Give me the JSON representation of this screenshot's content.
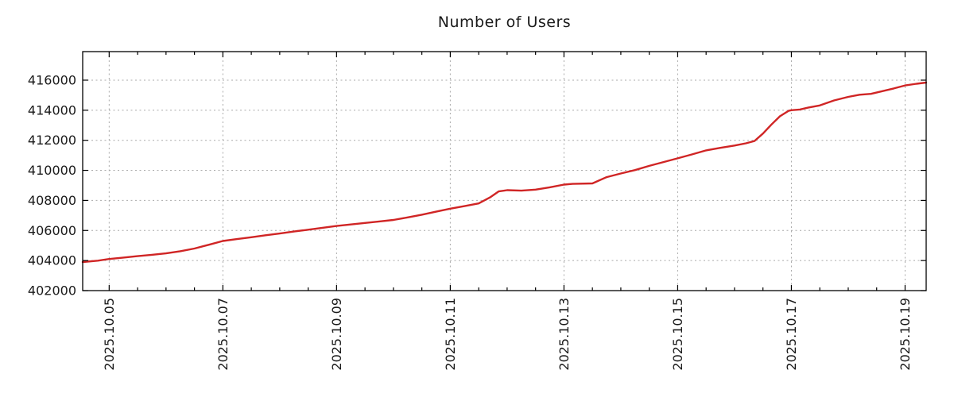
{
  "chart_data": {
    "type": "line",
    "title": "Number of Users",
    "background": "#ffffff",
    "grid": true,
    "legend": false,
    "colors": {
      "line": "#d02525",
      "grid": "#aaaaaa",
      "axis": "#000000",
      "text": "#1a1a1a"
    },
    "x_axis": {
      "note": "t = days since 2025.10.05 00:00",
      "range": [
        -0.466,
        14.371
      ],
      "minor_tick_step": 0.5,
      "major_ticks": [
        {
          "t": 0,
          "label": "2025.10.05"
        },
        {
          "t": 2,
          "label": "2025.10.07"
        },
        {
          "t": 4,
          "label": "2025.10.09"
        },
        {
          "t": 6,
          "label": "2025.10.11"
        },
        {
          "t": 8,
          "label": "2025.10.13"
        },
        {
          "t": 10,
          "label": "2025.10.15"
        },
        {
          "t": 12,
          "label": "2025.10.17"
        },
        {
          "t": 14,
          "label": "2025.10.19"
        }
      ]
    },
    "y_axis": {
      "range": [
        402000,
        417900
      ],
      "ticks": [
        {
          "value": 402000,
          "label": "402000"
        },
        {
          "value": 404000,
          "label": "404000"
        },
        {
          "value": 406000,
          "label": "406000"
        },
        {
          "value": 408000,
          "label": "408000"
        },
        {
          "value": 410000,
          "label": "410000"
        },
        {
          "value": 412000,
          "label": "412000"
        },
        {
          "value": 414000,
          "label": "414000"
        },
        {
          "value": 416000,
          "label": "416000"
        }
      ]
    },
    "series": [
      {
        "name": "users",
        "color": "#d02525",
        "points": [
          [
            -0.466,
            403900
          ],
          [
            -0.2,
            403990
          ],
          [
            0,
            404100
          ],
          [
            0.25,
            404200
          ],
          [
            0.5,
            404290
          ],
          [
            0.75,
            404380
          ],
          [
            1,
            404480
          ],
          [
            1.25,
            404620
          ],
          [
            1.5,
            404800
          ],
          [
            1.75,
            405050
          ],
          [
            2,
            405300
          ],
          [
            2.25,
            405430
          ],
          [
            2.5,
            405550
          ],
          [
            2.75,
            405680
          ],
          [
            3,
            405800
          ],
          [
            3.25,
            405930
          ],
          [
            3.5,
            406050
          ],
          [
            3.75,
            406180
          ],
          [
            4,
            406300
          ],
          [
            4.25,
            406400
          ],
          [
            4.5,
            406500
          ],
          [
            4.75,
            406600
          ],
          [
            5,
            406700
          ],
          [
            5.25,
            406870
          ],
          [
            5.5,
            407050
          ],
          [
            5.75,
            407250
          ],
          [
            6,
            407450
          ],
          [
            6.25,
            407620
          ],
          [
            6.5,
            407800
          ],
          [
            6.7,
            408200
          ],
          [
            6.85,
            408600
          ],
          [
            7,
            408680
          ],
          [
            7.25,
            408650
          ],
          [
            7.5,
            408720
          ],
          [
            7.75,
            408870
          ],
          [
            8,
            409050
          ],
          [
            8.15,
            409100
          ],
          [
            8.5,
            409130
          ],
          [
            8.75,
            409550
          ],
          [
            9,
            409790
          ],
          [
            9.25,
            410020
          ],
          [
            9.5,
            410300
          ],
          [
            9.75,
            410550
          ],
          [
            10,
            410800
          ],
          [
            10.25,
            411060
          ],
          [
            10.5,
            411330
          ],
          [
            10.75,
            411500
          ],
          [
            11,
            411650
          ],
          [
            11.2,
            411800
          ],
          [
            11.35,
            411950
          ],
          [
            11.5,
            412450
          ],
          [
            11.65,
            413050
          ],
          [
            11.8,
            413600
          ],
          [
            11.95,
            413960
          ],
          [
            12,
            414000
          ],
          [
            12.15,
            414050
          ],
          [
            12.3,
            414180
          ],
          [
            12.5,
            414320
          ],
          [
            12.75,
            414650
          ],
          [
            13,
            414890
          ],
          [
            13.2,
            415030
          ],
          [
            13.4,
            415090
          ],
          [
            13.6,
            415270
          ],
          [
            13.8,
            415450
          ],
          [
            14,
            415650
          ],
          [
            14.2,
            415760
          ],
          [
            14.37,
            415840
          ]
        ]
      }
    ]
  }
}
